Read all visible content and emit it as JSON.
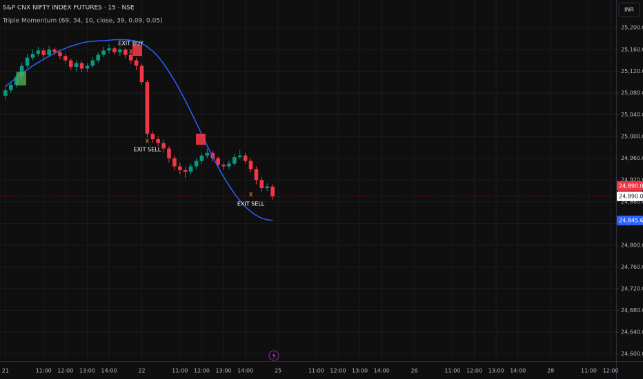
{
  "chart_data": {
    "type": "candlestick",
    "title": "S&P CNX NIFTY INDEX FUTURES · 15 · NSE",
    "indicator_label": "Triple Momentum (69, 34, 10, close, 39, 0.09, 0.05)",
    "currency": "INR",
    "up_color": "#089981",
    "down_color": "#f23645",
    "open": [
      25075,
      25085,
      25095,
      25110,
      25130,
      25145,
      25152,
      25158,
      25150,
      25160,
      25155,
      25148,
      25140,
      25128,
      25135,
      25125,
      25130,
      25140,
      25150,
      25158,
      25162,
      25155,
      25160,
      25150,
      25140,
      25130,
      25100,
      25005,
      24995,
      24988,
      24978,
      24960,
      24945,
      24938,
      24935,
      24945,
      24955,
      24965,
      24970,
      24960,
      24948,
      24945,
      24950,
      24962,
      24965,
      24955,
      24940,
      24920,
      24905,
      24908
    ],
    "high": [
      25092,
      25100,
      25116,
      25136,
      25152,
      25160,
      25165,
      25163,
      25166,
      25164,
      25160,
      25152,
      25144,
      25140,
      25139,
      25135,
      25146,
      25155,
      25165,
      25170,
      25166,
      25164,
      25163,
      25154,
      25145,
      25134,
      25104,
      25010,
      25000,
      24994,
      24982,
      24965,
      24952,
      24944,
      24950,
      24960,
      24970,
      24978,
      24974,
      24964,
      24952,
      24956,
      24968,
      24975,
      24970,
      24960,
      24945,
      24925,
      24914,
      24912
    ],
    "low": [
      25068,
      25080,
      25090,
      25104,
      25126,
      25140,
      25147,
      25144,
      25146,
      25150,
      25142,
      25134,
      25122,
      25120,
      25118,
      25119,
      25126,
      25135,
      25146,
      25152,
      25150,
      25148,
      25144,
      25134,
      25122,
      25095,
      24998,
      24988,
      24982,
      24970,
      24952,
      24938,
      24930,
      24924,
      24930,
      24940,
      24950,
      24960,
      24954,
      24942,
      24938,
      24940,
      24946,
      24958,
      24950,
      24934,
      24912,
      24898,
      24900,
      24884
    ],
    "close": [
      25085,
      25095,
      25110,
      25130,
      25145,
      25152,
      25158,
      25150,
      25160,
      25155,
      25148,
      25140,
      25128,
      25135,
      25125,
      25130,
      25140,
      25150,
      25158,
      25162,
      25155,
      25160,
      25150,
      25140,
      25130,
      25100,
      25005,
      24995,
      24988,
      24978,
      24960,
      24945,
      24938,
      24935,
      24945,
      24955,
      24965,
      24970,
      24960,
      24948,
      24945,
      24950,
      24962,
      24965,
      24955,
      24940,
      24920,
      24905,
      24908,
      24890
    ],
    "overlay": {
      "color": "#2962ff",
      "values": [
        25092,
        25100,
        25108,
        25116,
        25123,
        25130,
        25136,
        25142,
        25148,
        25153,
        25158,
        25162,
        25166,
        25169,
        25172,
        25174,
        25175,
        25176,
        25176,
        25177,
        25178,
        25178,
        25178,
        25177,
        25175,
        25171,
        25165,
        25157,
        25147,
        25134,
        25119,
        25103,
        25085,
        25066,
        25046,
        25025,
        25004,
        24983,
        24963,
        24944,
        24926,
        24910,
        24895,
        24882,
        24871,
        24862,
        24855,
        24850,
        24847,
        24845.67
      ]
    },
    "annotations": [
      {
        "text": "EXIT BUY",
        "x": 23,
        "y": 25171,
        "color": "#ffffff"
      },
      {
        "text": "X",
        "x": 23,
        "y": 25156,
        "color": "#f5a623"
      },
      {
        "text": "X",
        "x": 26,
        "y": 24991,
        "color": "#f5a623"
      },
      {
        "text": "EXIT SELL",
        "x": 26,
        "y": 24976,
        "color": "#ffffff"
      },
      {
        "text": "X",
        "x": 45,
        "y": 24893,
        "color": "#f5a623"
      },
      {
        "text": "EXIT SELL",
        "x": 45,
        "y": 24876,
        "color": "#ffffff"
      }
    ],
    "price_labels": [
      {
        "value": 24890,
        "label": "24,890.00",
        "color": "#f23645"
      },
      {
        "value": 24890,
        "label": "24,890.00",
        "color": "#ffffff"
      },
      {
        "value": 24845.67,
        "label": "24,845.67",
        "color": "#2962ff"
      }
    ],
    "xlim": [
      -1,
      112
    ],
    "ylim": [
      24587,
      25251
    ],
    "xticks": [
      {
        "value": 0,
        "label": "21"
      },
      {
        "value": 7,
        "label": "11:00"
      },
      {
        "value": 11,
        "label": "12:00"
      },
      {
        "value": 15,
        "label": "13:00"
      },
      {
        "value": 19,
        "label": "14:00"
      },
      {
        "value": 25,
        "label": "22"
      },
      {
        "value": 32,
        "label": "11:00"
      },
      {
        "value": 36,
        "label": "12:00"
      },
      {
        "value": 40,
        "label": "13:00"
      },
      {
        "value": 44,
        "label": "14:00"
      },
      {
        "value": 50,
        "label": "25"
      },
      {
        "value": 57,
        "label": "11:00"
      },
      {
        "value": 61,
        "label": "12:00"
      },
      {
        "value": 65,
        "label": "13:00"
      },
      {
        "value": 69,
        "label": "14:00"
      },
      {
        "value": 75,
        "label": "26"
      },
      {
        "value": 82,
        "label": "11:00"
      },
      {
        "value": 86,
        "label": "12:00"
      },
      {
        "value": 90,
        "label": "13:00"
      },
      {
        "value": 94,
        "label": "14:00"
      },
      {
        "value": 100,
        "label": "28"
      },
      {
        "value": 107,
        "label": "11:00"
      },
      {
        "value": 111,
        "label": "12:00"
      }
    ],
    "yticks": [
      {
        "value": 25200,
        "label": "25,200.00"
      },
      {
        "value": 25160,
        "label": "25,160.00"
      },
      {
        "value": 25120,
        "label": "25,120.00"
      },
      {
        "value": 25080,
        "label": "25,080.00"
      },
      {
        "value": 25040,
        "label": "25,040.00"
      },
      {
        "value": 25000,
        "label": "25,000.00"
      },
      {
        "value": 24960,
        "label": "24,960.00"
      },
      {
        "value": 24920,
        "label": "24,920.00"
      },
      {
        "value": 24880,
        "label": "24,880.00"
      },
      {
        "value": 24840,
        "label": "24,840.00"
      },
      {
        "value": 24800,
        "label": "24,800.00"
      },
      {
        "value": 24760,
        "label": "24,760.00"
      },
      {
        "value": 24720,
        "label": "24,720.00"
      },
      {
        "value": 24680,
        "label": "24,680.00"
      },
      {
        "value": 24640,
        "label": "24,640.00"
      },
      {
        "value": 24600,
        "label": "24,600.00"
      }
    ],
    "grid": true
  }
}
